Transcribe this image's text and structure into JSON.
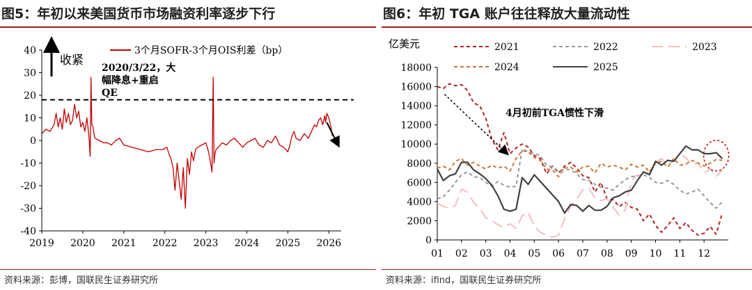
{
  "charts": [
    {
      "title": "图5：年初以来美国货币市场融资利率逐步下行",
      "source": "资料来源：彭博，国联民生证券研究所",
      "chart_data": {
        "type": "line",
        "ylim": [
          -40,
          40
        ],
        "yticks": [
          40,
          30,
          20,
          10,
          0,
          -10,
          -20,
          -30,
          -40
        ],
        "xlim": [
          2019,
          2026.3
        ],
        "xticks": [
          2019,
          2020,
          2021,
          2022,
          2023,
          2024,
          2025,
          2026
        ],
        "legend": "top",
        "series": [
          {
            "name": "3个月SOFR-3个月OIS利差（bp）",
            "color": "#c00000",
            "x": [
              2019.0,
              2019.1,
              2019.2,
              2019.3,
              2019.35,
              2019.4,
              2019.45,
              2019.5,
              2019.55,
              2019.6,
              2019.65,
              2019.7,
              2019.75,
              2019.8,
              2019.85,
              2019.9,
              2019.95,
              2020.0,
              2020.05,
              2020.1,
              2020.15,
              2020.18,
              2020.2,
              2020.22,
              2020.25,
              2020.28,
              2020.3,
              2020.4,
              2020.5,
              2020.6,
              2020.7,
              2020.8,
              2020.9,
              2021.0,
              2021.2,
              2021.4,
              2021.6,
              2021.8,
              2021.95,
              2022.05,
              2022.1,
              2022.15,
              2022.2,
              2022.25,
              2022.3,
              2022.35,
              2022.4,
              2022.45,
              2022.5,
              2022.55,
              2022.6,
              2022.65,
              2022.7,
              2022.75,
              2022.8,
              2022.9,
              2023.0,
              2023.05,
              2023.1,
              2023.15,
              2023.18,
              2023.2,
              2023.22,
              2023.25,
              2023.3,
              2023.4,
              2023.5,
              2023.6,
              2023.7,
              2023.8,
              2023.9,
              2024.0,
              2024.1,
              2024.2,
              2024.3,
              2024.4,
              2024.5,
              2024.6,
              2024.7,
              2024.8,
              2024.9,
              2025.0,
              2025.05,
              2025.1,
              2025.15,
              2025.2,
              2025.3,
              2025.4,
              2025.5,
              2025.6,
              2025.65,
              2025.7,
              2025.75,
              2025.8,
              2025.85,
              2025.9,
              2025.92,
              2025.95,
              2026.0,
              2026.05,
              2026.08
            ],
            "y": [
              3,
              5,
              4,
              7,
              12,
              6,
              10,
              5,
              14,
              8,
              12,
              7,
              9,
              16,
              10,
              13,
              6,
              8,
              4,
              10,
              2,
              -7,
              28,
              7,
              6,
              2,
              1,
              0,
              -1,
              -1,
              -2,
              0,
              1,
              -2,
              -3,
              -4,
              -5,
              -4,
              -4,
              -3,
              -6,
              -8,
              -12,
              -22,
              -10,
              -18,
              -26,
              -12,
              -30,
              -8,
              -15,
              -5,
              -9,
              -4,
              -3,
              -2,
              -1,
              -4,
              -8,
              -14,
              28,
              -10,
              -6,
              -4,
              -3,
              -1,
              -2,
              0,
              1,
              -1,
              -3,
              -1,
              0,
              1,
              -2,
              -3,
              0,
              -1,
              2,
              -2,
              -3,
              -5,
              -2,
              2,
              4,
              1,
              0,
              3,
              1,
              5,
              7,
              6,
              9,
              10,
              7,
              11,
              8,
              12,
              10,
              6,
              2
            ]
          }
        ],
        "annotations": [
          {
            "text_lines": [
              "2020/3/22，大",
              "幅降息+重启",
              "QE"
            ],
            "x": 2020.22,
            "y": 28
          },
          {
            "text": "收紧",
            "type": "up-arrow"
          },
          {
            "type": "hline",
            "y": 18,
            "style": "dashed"
          },
          {
            "type": "down-arrow",
            "from": [
              2025.95,
              8
            ],
            "to": [
              2026.2,
              -1
            ]
          }
        ]
      }
    },
    {
      "title": "图6：年初 TGA 账户往往释放大量流动性",
      "source": "资料来源：ifind，国联民生证券研究所",
      "chart_data": {
        "type": "line",
        "ylabel": "亿美元",
        "ylim": [
          0,
          18000
        ],
        "yticks": [
          18000,
          16000,
          14000,
          12000,
          10000,
          8000,
          6000,
          4000,
          2000,
          0
        ],
        "xlim": [
          1,
          13
        ],
        "xtick_labels": [
          "01",
          "02",
          "03",
          "04",
          "05",
          "06",
          "07",
          "08",
          "09",
          "10",
          "11",
          "12"
        ],
        "legend": "top",
        "series": [
          {
            "name": "2021",
            "color": "#b22222",
            "dash": "dashed",
            "x": [
              1,
              1.25,
              1.5,
              1.75,
              2,
              2.25,
              2.5,
              2.75,
              3,
              3.25,
              3.5,
              3.75,
              4,
              4.25,
              4.5,
              4.75,
              5,
              5.25,
              5.5,
              5.75,
              6,
              6.25,
              6.5,
              6.75,
              7,
              7.25,
              7.5,
              7.75,
              8,
              8.25,
              8.5,
              8.75,
              9,
              9.25,
              9.5,
              9.75,
              10,
              10.25,
              10.5,
              10.75,
              11,
              11.25,
              11.5,
              11.75,
              12,
              12.25,
              12.5,
              12.75
            ],
            "y": [
              16000,
              15800,
              16300,
              16100,
              16200,
              15600,
              14300,
              14000,
              12700,
              10500,
              9400,
              11200,
              9000,
              9600,
              10000,
              9700,
              8800,
              8500,
              6900,
              7700,
              7000,
              7700,
              8100,
              7500,
              6700,
              6500,
              5000,
              6000,
              4300,
              4200,
              3500,
              3900,
              3400,
              3200,
              2000,
              2700,
              1500,
              800,
              1500,
              2300,
              1200,
              1800,
              1000,
              500,
              700,
              1400,
              600,
              2800
            ]
          },
          {
            "name": "2022",
            "color": "#999999",
            "dash": "dashed",
            "x": [
              1,
              1.25,
              1.5,
              1.75,
              2,
              2.25,
              2.5,
              2.75,
              3,
              3.25,
              3.5,
              3.75,
              4,
              4.25,
              4.5,
              4.75,
              5,
              5.25,
              5.5,
              5.75,
              6,
              6.25,
              6.5,
              6.75,
              7,
              7.25,
              7.5,
              7.75,
              8,
              8.25,
              8.5,
              8.75,
              9,
              9.25,
              9.5,
              9.75,
              10,
              10.25,
              10.5,
              10.75,
              11,
              11.25,
              11.5,
              11.75,
              12,
              12.25,
              12.5,
              12.75
            ],
            "y": [
              4300,
              4500,
              5200,
              6000,
              6800,
              7100,
              6600,
              6500,
              6000,
              5600,
              6100,
              5700,
              5500,
              5600,
              9500,
              9200,
              9000,
              8800,
              7800,
              7600,
              7200,
              7400,
              7300,
              6900,
              6300,
              6200,
              5800,
              5500,
              5400,
              5200,
              5800,
              6300,
              6600,
              6700,
              6800,
              6500,
              6000,
              5900,
              6200,
              5800,
              5200,
              4800,
              5000,
              5300,
              4600,
              3900,
              3300,
              4000
            ]
          },
          {
            "name": "2023",
            "color": "#f0c0c0",
            "dash": "long",
            "x": [
              1,
              1.25,
              1.5,
              1.75,
              2,
              2.25,
              2.5,
              2.75,
              3,
              3.25,
              3.5,
              3.75,
              4,
              4.25,
              4.5,
              4.75,
              5,
              5.25,
              5.5,
              5.75,
              6,
              6.25,
              6.5,
              6.75,
              7,
              7.25,
              7.5,
              7.75,
              8,
              8.25,
              8.5,
              8.75,
              9,
              9.25,
              9.5,
              9.75,
              10,
              10.25,
              10.5,
              10.75,
              11,
              11.25,
              11.5,
              11.75,
              12,
              12.25,
              12.5,
              12.75
            ],
            "y": [
              3800,
              3500,
              3300,
              3600,
              5300,
              5000,
              3900,
              3300,
              2300,
              2000,
              1600,
              1300,
              1700,
              1200,
              2500,
              2900,
              1400,
              800,
              500,
              300,
              500,
              2200,
              3500,
              4300,
              5200,
              5400,
              4400,
              4100,
              4300,
              3400,
              2600,
              3100,
              6200,
              6800,
              6700,
              7100,
              8100,
              8500,
              7800,
              8300,
              8900,
              8600,
              7800,
              8100,
              7000,
              7400,
              6600,
              7300
            ]
          },
          {
            "name": "2024",
            "color": "#c97838",
            "dash": "dashed",
            "x": [
              1,
              1.25,
              1.5,
              1.75,
              2,
              2.25,
              2.5,
              2.75,
              3,
              3.25,
              3.5,
              3.75,
              4,
              4.25,
              4.5,
              4.75,
              5,
              5.25,
              5.5,
              5.75,
              6,
              6.25,
              6.5,
              6.75,
              7,
              7.25,
              7.5,
              7.75,
              8,
              8.25,
              8.5,
              8.75,
              9,
              9.25,
              9.5,
              9.75,
              10,
              10.25,
              10.5,
              10.75,
              11,
              11.25,
              11.5,
              11.75,
              12,
              12.25,
              12.5,
              12.75
            ],
            "y": [
              7500,
              7700,
              7300,
              8200,
              8500,
              7800,
              8100,
              7700,
              7400,
              7800,
              7500,
              7700,
              7200,
              8500,
              9300,
              9200,
              8600,
              8300,
              7400,
              7300,
              6600,
              7500,
              7600,
              7100,
              7600,
              7700,
              7000,
              8000,
              7600,
              7800,
              7600,
              7300,
              7900,
              7600,
              7800,
              7100,
              8000,
              8200,
              7600,
              8500,
              7800,
              7900,
              8300,
              8000,
              7700,
              8000,
              8400,
              8300
            ]
          },
          {
            "name": "2025",
            "color": "#404040",
            "dash": "solid",
            "x": [
              1,
              1.25,
              1.5,
              1.75,
              2,
              2.25,
              2.5,
              2.75,
              3,
              3.25,
              3.5,
              3.75,
              4,
              4.25,
              4.5,
              4.75,
              5,
              5.25,
              5.5,
              5.75,
              6,
              6.25,
              6.5,
              6.75,
              7,
              7.25,
              7.5,
              7.75,
              8,
              8.25,
              8.5,
              8.75,
              9,
              9.25,
              9.5,
              9.75,
              10,
              10.25,
              10.5,
              10.75,
              11,
              11.25,
              11.5,
              11.75,
              12,
              12.25,
              12.5,
              12.75
            ],
            "y": [
              7400,
              6200,
              6700,
              6900,
              8100,
              8100,
              7300,
              6900,
              6400,
              5700,
              4600,
              3200,
              3000,
              3200,
              6500,
              5800,
              6800,
              6100,
              5400,
              4700,
              4000,
              2800,
              3700,
              3600,
              3000,
              3600,
              3100,
              3100,
              3500,
              4400,
              4600,
              5000,
              5200,
              6200,
              7100,
              6800,
              8200,
              7800,
              8300,
              8200,
              9000,
              9800,
              9400,
              9400,
              9000,
              9000,
              9100,
              8500
            ]
          }
        ],
        "annotations": [
          {
            "text": "4月初前TGA惯性下滑",
            "type": "arrow",
            "from": [
              1.3,
              15200
            ],
            "to": [
              3.8,
              9200
            ]
          },
          {
            "type": "circle",
            "cx": 12.5,
            "cy": 8800
          }
        ]
      }
    }
  ]
}
